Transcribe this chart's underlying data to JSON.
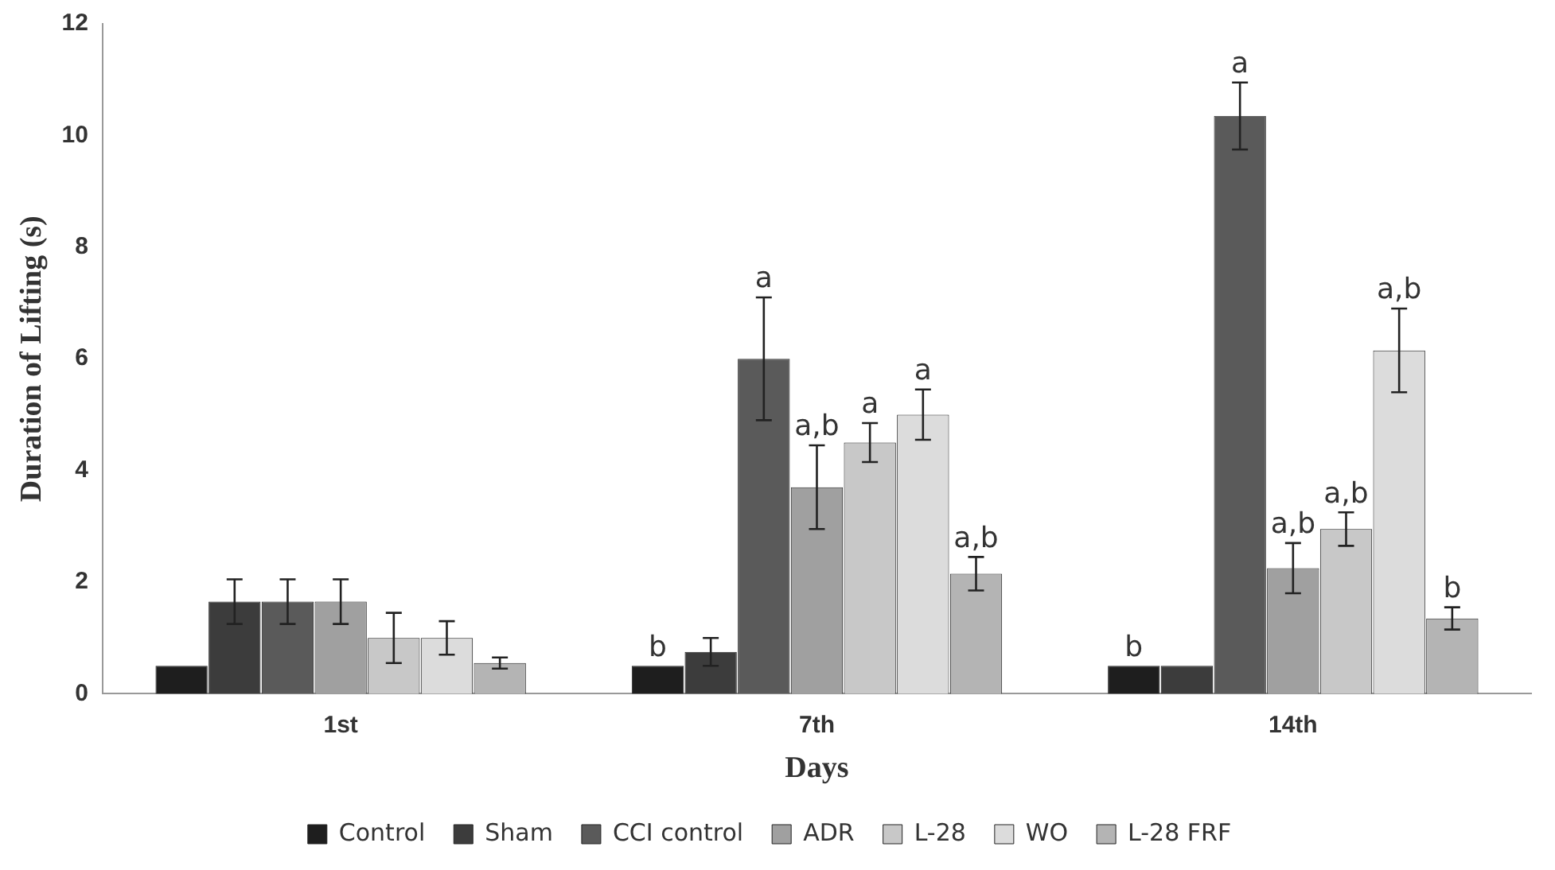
{
  "chart_data": {
    "type": "bar",
    "xlabel": "Days",
    "ylabel": "Duration of Lifting (s)",
    "categories": [
      "1st",
      "7th",
      "14th"
    ],
    "series": [
      {
        "name": "Control",
        "color": "#1e1e1e",
        "values": [
          0.5,
          0.5,
          0.5
        ],
        "errors": [
          null,
          null,
          null
        ],
        "value_labels": [
          null,
          "b",
          "b"
        ]
      },
      {
        "name": "Sham",
        "color": "#3c3c3c",
        "values": [
          1.65,
          0.75,
          0.5
        ],
        "errors": [
          0.4,
          0.25,
          null
        ]
      },
      {
        "name": "CCI control",
        "color": "#5a5a5a",
        "values": [
          1.65,
          6.0,
          10.35
        ],
        "errors": [
          0.4,
          1.1,
          0.6
        ],
        "value_labels": [
          null,
          "a",
          "a"
        ]
      },
      {
        "name": "ADR",
        "color": "#a0a0a0",
        "values": [
          1.65,
          3.7,
          2.25
        ],
        "errors": [
          0.4,
          0.75,
          0.45
        ],
        "value_labels": [
          null,
          "a,b",
          "a,b"
        ]
      },
      {
        "name": "L-28",
        "color": "#c8c8c8",
        "values": [
          1.0,
          4.5,
          2.95
        ],
        "errors": [
          0.45,
          0.35,
          0.3
        ],
        "value_labels": [
          null,
          "a",
          "a,b"
        ]
      },
      {
        "name": "WO",
        "color": "#dcdcdc",
        "values": [
          1.0,
          5.0,
          6.15
        ],
        "errors": [
          0.3,
          0.45,
          0.75
        ],
        "value_labels": [
          null,
          "a",
          "a,b"
        ]
      },
      {
        "name": "L-28 FRF",
        "color": "#b4b4b4",
        "values": [
          0.55,
          2.15,
          1.35
        ],
        "errors": [
          0.1,
          0.3,
          0.2
        ],
        "value_labels": [
          null,
          "a,b",
          "b"
        ]
      }
    ],
    "ylim": [
      0,
      12
    ],
    "yticks": [
      0,
      2,
      4,
      6,
      8,
      10,
      12
    ],
    "grid": false,
    "legend": "bottom"
  }
}
